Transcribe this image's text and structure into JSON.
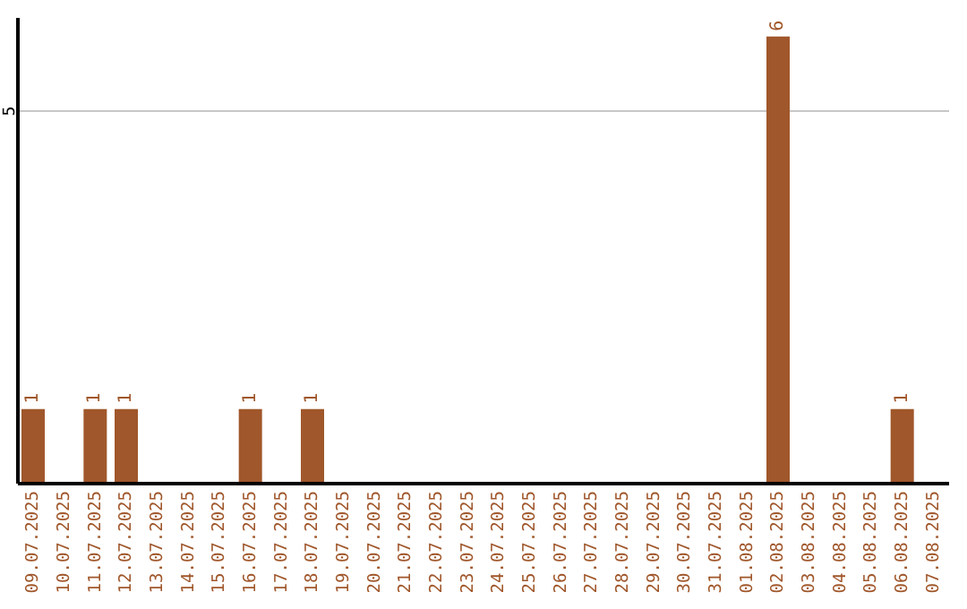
{
  "chart_data": {
    "type": "bar",
    "categories": [
      "09.07.2025",
      "10.07.2025",
      "11.07.2025",
      "12.07.2025",
      "13.07.2025",
      "14.07.2025",
      "15.07.2025",
      "16.07.2025",
      "17.07.2025",
      "18.07.2025",
      "19.07.2025",
      "20.07.2025",
      "21.07.2025",
      "22.07.2025",
      "23.07.2025",
      "24.07.2025",
      "25.07.2025",
      "26.07.2025",
      "27.07.2025",
      "28.07.2025",
      "29.07.2025",
      "30.07.2025",
      "31.07.2025",
      "01.08.2025",
      "02.08.2025",
      "03.08.2025",
      "04.08.2025",
      "05.08.2025",
      "06.08.2025",
      "07.08.2025"
    ],
    "values": [
      1,
      0,
      1,
      1,
      0,
      0,
      0,
      1,
      0,
      1,
      0,
      0,
      0,
      0,
      0,
      0,
      0,
      0,
      0,
      0,
      0,
      0,
      0,
      0,
      6,
      0,
      0,
      0,
      1,
      0
    ],
    "value_labels": [
      "1",
      null,
      "1",
      "1",
      null,
      null,
      null,
      "1",
      null,
      "1",
      null,
      null,
      null,
      null,
      null,
      null,
      null,
      null,
      null,
      null,
      null,
      null,
      null,
      null,
      "6",
      null,
      null,
      null,
      "1",
      null
    ],
    "color": "#a0572b",
    "ylim": [
      0,
      6.25
    ],
    "yticks": [
      5
    ],
    "grid": "y"
  }
}
